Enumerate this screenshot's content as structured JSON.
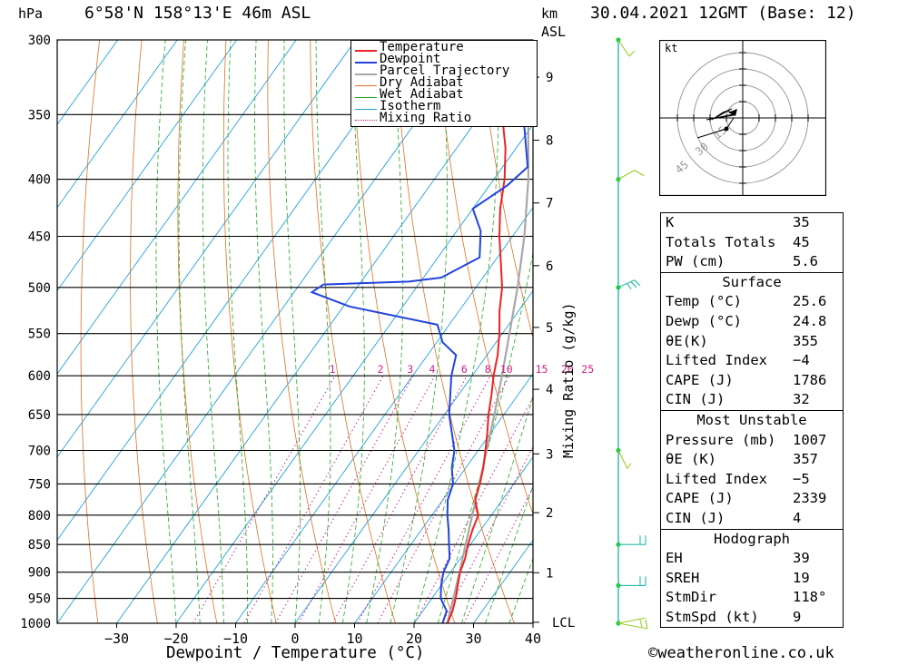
{
  "header": {
    "location": "6°58'N  158°13'E  46m  ASL",
    "datetime": "30.04.2021  12GMT  (Base: 12)",
    "pressure_unit": "hPa",
    "height_unit_1": "km",
    "height_unit_2": "ASL"
  },
  "chart_data": {
    "type": "line",
    "xlabel": "Dewpoint / Temperature (°C)",
    "ylabel": "Mixing Ratio (g/kg)",
    "xlim": [
      -40,
      40
    ],
    "plim": [
      1000,
      300
    ],
    "x_ticks": [
      -30,
      -20,
      -10,
      0,
      10,
      20,
      30,
      40
    ],
    "pressure_levels": [
      300,
      350,
      400,
      450,
      500,
      550,
      600,
      650,
      700,
      750,
      800,
      850,
      900,
      950,
      1000
    ],
    "km_ticks": [
      {
        "label": "1",
        "p": 901
      },
      {
        "label": "2",
        "p": 796
      },
      {
        "label": "3",
        "p": 705
      },
      {
        "label": "4",
        "p": 617
      },
      {
        "label": "5",
        "p": 543
      },
      {
        "label": "6",
        "p": 478
      },
      {
        "label": "7",
        "p": 420
      },
      {
        "label": "8",
        "p": 369
      },
      {
        "label": "9",
        "p": 324
      },
      {
        "label": "LCL",
        "p": 998
      }
    ],
    "mixing_ratio_labels": [
      "1",
      "2",
      "3",
      "4",
      "6",
      "8",
      "10",
      "15",
      "20",
      "25"
    ],
    "mixing_ratio_values": [
      1,
      2,
      3,
      4,
      6,
      8,
      10,
      15,
      20,
      25
    ],
    "legend": [
      "Temperature",
      "Dewpoint",
      "Parcel Trajectory",
      "Dry Adiabat",
      "Wet Adiabat",
      "Isotherm",
      "Mixing Ratio"
    ],
    "legend_position": "top-right",
    "colors": {
      "temperature": "#ee2222",
      "dewpoint": "#2244dd",
      "parcel": "#a8a8a8",
      "dry_adiabat": "#e07020",
      "wet_adiabat": "#22aa22",
      "isotherm": "#22a0e0",
      "mixing_ratio": "#cc2288",
      "wind": "#22bbaa"
    },
    "series": [
      {
        "name": "Temperature",
        "points": [
          [
            1000,
            25.6
          ],
          [
            975,
            25.0
          ],
          [
            950,
            24.0
          ],
          [
            925,
            22.8
          ],
          [
            900,
            21.6
          ],
          [
            875,
            20.8
          ],
          [
            850,
            19.6
          ],
          [
            825,
            18.6
          ],
          [
            800,
            17.8
          ],
          [
            775,
            15.4
          ],
          [
            750,
            14.3
          ],
          [
            725,
            12.9
          ],
          [
            700,
            11.2
          ],
          [
            675,
            9.4
          ],
          [
            650,
            7.4
          ],
          [
            625,
            5.6
          ],
          [
            600,
            3.6
          ],
          [
            575,
            1.8
          ],
          [
            550,
            -0.5
          ],
          [
            525,
            -3.2
          ],
          [
            500,
            -5.6
          ],
          [
            475,
            -8.8
          ],
          [
            450,
            -12.2
          ],
          [
            425,
            -15.4
          ],
          [
            400,
            -18.2
          ],
          [
            375,
            -21.8
          ],
          [
            350,
            -26.4
          ],
          [
            325,
            -31.2
          ],
          [
            300,
            -36.5
          ]
        ]
      },
      {
        "name": "Dewpoint",
        "points": [
          [
            1000,
            24.8
          ],
          [
            975,
            24.0
          ],
          [
            950,
            21.5
          ],
          [
            925,
            20.0
          ],
          [
            900,
            18.8
          ],
          [
            875,
            18.2
          ],
          [
            850,
            16.4
          ],
          [
            825,
            14.6
          ],
          [
            800,
            12.6
          ],
          [
            775,
            10.8
          ],
          [
            750,
            9.8
          ],
          [
            725,
            7.6
          ],
          [
            700,
            6.0
          ],
          [
            650,
            0.8
          ],
          [
            600,
            -3.5
          ],
          [
            575,
            -5.2
          ],
          [
            560,
            -9.0
          ],
          [
            540,
            -12.0
          ],
          [
            520,
            -29.0
          ],
          [
            505,
            -37.0
          ],
          [
            497,
            -36.0
          ],
          [
            494,
            -22.0
          ],
          [
            490,
            -17.0
          ],
          [
            470,
            -13.0
          ],
          [
            445,
            -16.0
          ],
          [
            425,
            -20.0
          ],
          [
            405,
            -17.0
          ],
          [
            390,
            -15.8
          ],
          [
            360,
            -21.0
          ],
          [
            340,
            -25.0
          ],
          [
            320,
            -32.0
          ],
          [
            300,
            -42.0
          ]
        ]
      },
      {
        "name": "Parcel Trajectory",
        "points": [
          [
            1000,
            25.6
          ],
          [
            950,
            23.6
          ],
          [
            900,
            21.5
          ],
          [
            850,
            19.2
          ],
          [
            800,
            16.8
          ],
          [
            750,
            14.2
          ],
          [
            700,
            11.4
          ],
          [
            650,
            8.4
          ],
          [
            600,
            5.0
          ],
          [
            550,
            1.2
          ],
          [
            500,
            -3.0
          ],
          [
            450,
            -8.0
          ],
          [
            400,
            -14.2
          ],
          [
            350,
            -22.0
          ],
          [
            300,
            -31.0
          ]
        ]
      }
    ],
    "wind_profile": [
      {
        "p": 300,
        "barb": "5kt"
      },
      {
        "p": 400,
        "barb": "10kt"
      },
      {
        "p": 500,
        "barb": "15kt"
      },
      {
        "p": 700,
        "barb": "5kt"
      },
      {
        "p": 850,
        "barb": "10kt"
      },
      {
        "p": 925,
        "barb": "10kt"
      },
      {
        "p": 1000,
        "barb": "15kt"
      }
    ],
    "hodograph": {
      "unit_label": "kt",
      "ring_labels": [
        "15",
        "30",
        "45"
      ]
    }
  },
  "indices": {
    "k_label": "K",
    "k": "35",
    "tt_label": "Totals Totals",
    "tt": "45",
    "pw_label": "PW (cm)",
    "pw": "5.6"
  },
  "surface": {
    "title": "Surface",
    "temp_label": "Temp (°C)",
    "temp": "25.6",
    "dewp_label": "Dewp (°C)",
    "dewp": "24.8",
    "theta_label": "θE(K)",
    "theta": "355",
    "li_label": "Lifted Index",
    "li": "−4",
    "cape_label": "CAPE (J)",
    "cape": "1786",
    "cin_label": "CIN (J)",
    "cin": "32"
  },
  "most_unstable": {
    "title": "Most Unstable",
    "pressure_label": "Pressure (mb)",
    "pressure": "1007",
    "theta_label": "θE (K)",
    "theta": "357",
    "li_label": "Lifted Index",
    "li": "−5",
    "cape_label": "CAPE (J)",
    "cape": "2339",
    "cin_label": "CIN (J)",
    "cin": "4"
  },
  "hodograph_table": {
    "title": "Hodograph",
    "eh_label": "EH",
    "eh": "39",
    "sreh_label": "SREH",
    "sreh": "19",
    "stmdir_label": "StmDir",
    "stmdir": "118°",
    "stmspd_label": "StmSpd (kt)",
    "stmspd": "9"
  },
  "footer": {
    "credit": "©weatheronline.co.uk"
  }
}
